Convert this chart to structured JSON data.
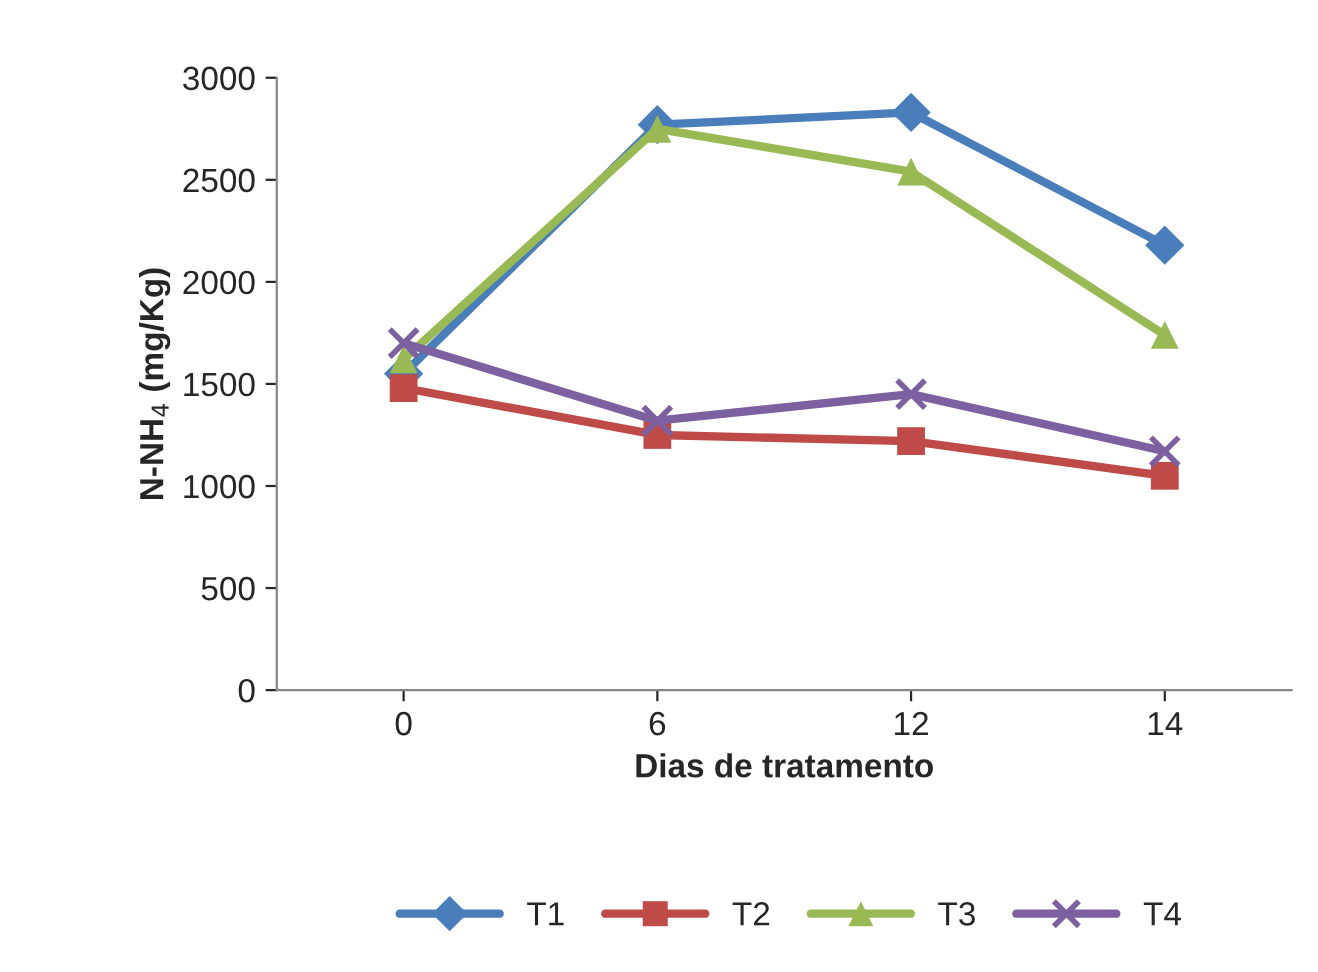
{
  "chart_data": {
    "type": "line",
    "xlabel": "Dias de tratamento",
    "ylabel": "N-NH$_{4}$ (mg/Kg)",
    "categories": [
      "0",
      "6",
      "12",
      "14"
    ],
    "series": [
      {
        "name": "T1",
        "color": "#4a7ebb",
        "marker": "diamond",
        "values": [
          1550,
          2770,
          2830,
          2180
        ]
      },
      {
        "name": "T2",
        "color": "#be4b48",
        "marker": "square",
        "values": [
          1480,
          1250,
          1220,
          1050
        ]
      },
      {
        "name": "T3",
        "color": "#98b954",
        "marker": "triangle",
        "values": [
          1620,
          2750,
          2540,
          1740
        ]
      },
      {
        "name": "T4",
        "color": "#7d60a0",
        "marker": "cross",
        "values": [
          1700,
          1320,
          1450,
          1170
        ]
      }
    ],
    "ylim": [
      0,
      3000
    ],
    "yticks": [
      0,
      500,
      1000,
      1500,
      2000,
      2500,
      3000
    ],
    "grid": false,
    "legend": "bottom",
    "line_style": "solid"
  }
}
